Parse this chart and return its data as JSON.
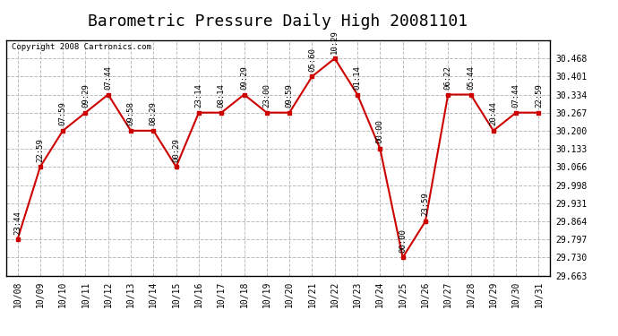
{
  "title": "Barometric Pressure Daily High 20081101",
  "copyright": "Copyright 2008 Cartronics.com",
  "x_labels": [
    "10/08",
    "10/09",
    "10/10",
    "10/11",
    "10/12",
    "10/13",
    "10/14",
    "10/15",
    "10/16",
    "10/17",
    "10/18",
    "10/19",
    "10/20",
    "10/21",
    "10/22",
    "10/23",
    "10/24",
    "10/25",
    "10/26",
    "10/27",
    "10/28",
    "10/29",
    "10/30",
    "10/31"
  ],
  "y_values": [
    29.797,
    30.066,
    30.2,
    30.267,
    30.334,
    30.2,
    30.2,
    30.066,
    30.267,
    30.267,
    30.334,
    30.267,
    30.267,
    30.401,
    30.468,
    30.334,
    30.133,
    29.73,
    29.864,
    30.334,
    30.334,
    30.2,
    30.267,
    30.267
  ],
  "time_labels": [
    "23:44",
    "22:59",
    "07:59",
    "09:29",
    "07:44",
    "09:58",
    "08:29",
    "00:29",
    "23:14",
    "08:14",
    "09:29",
    "23:00",
    "09:59",
    "05:60",
    "10:29",
    "01:14",
    "00:00",
    "00:00",
    "23:59",
    "06:22",
    "05:44",
    "20:44",
    "07:44",
    "22:59"
  ],
  "ylim_min": 29.663,
  "ylim_max": 30.535,
  "ytick_values": [
    29.663,
    29.73,
    29.797,
    29.864,
    29.931,
    29.998,
    30.066,
    30.133,
    30.2,
    30.267,
    30.334,
    30.401,
    30.468
  ],
  "line_color": "#cc0000",
  "marker_color": "#cc0000",
  "bg_color": "#ffffff",
  "grid_color": "#bbbbbb",
  "title_fontsize": 13,
  "tick_fontsize": 7,
  "annot_fontsize": 6.5
}
